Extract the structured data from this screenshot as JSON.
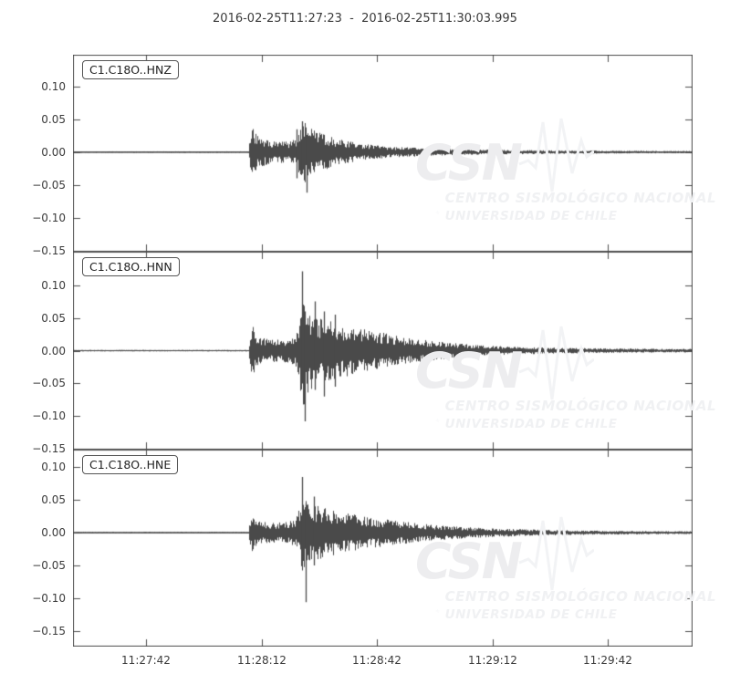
{
  "title": "2016-02-25T11:27:23  -  2016-02-25T11:30:03.995",
  "watermark": {
    "logo": "CSN",
    "line1": "CENTRO SISMOLÓGICO NACIONAL",
    "line2": "UNIVERSIDAD DE CHILE"
  },
  "colors": {
    "trace": "#4a4a4a",
    "frame": "#4d4d4d",
    "tick_label": "#3a3a3a",
    "watermark_logo": "#ededef",
    "watermark_text": "#f0f1f3",
    "background": "#ffffff"
  },
  "chart_data": {
    "type": "line",
    "kind": "seismogram-3-panel-waveform",
    "title": "2016-02-25T11:27:23  -  2016-02-25T11:30:03.995",
    "time_start": "2016-02-25T11:27:23",
    "time_end": "2016-02-25T11:30:03.995",
    "duration_s": 160.995,
    "grid": false,
    "legend": false,
    "xticks": [
      {
        "t": 19,
        "label": "11:27:42"
      },
      {
        "t": 49,
        "label": "11:28:12"
      },
      {
        "t": 79,
        "label": "11:28:42"
      },
      {
        "t": 109,
        "label": "11:29:12"
      },
      {
        "t": 139,
        "label": "11:29:42"
      }
    ],
    "yticks": [
      {
        "v": 0.1,
        "label": "0.10"
      },
      {
        "v": 0.05,
        "label": "0.05"
      },
      {
        "v": 0.0,
        "label": "0.00"
      },
      {
        "v": -0.05,
        "label": "−0.05"
      },
      {
        "v": -0.1,
        "label": "−0.10"
      },
      {
        "v": -0.15,
        "label": "−0.15"
      }
    ],
    "event_onset_s": 45.8,
    "s_burst_s": 59.6,
    "panels": [
      {
        "id": "C1.C18O..HNZ",
        "ylim": [
          -0.152,
          0.1486
        ],
        "peak": 0.047,
        "trough": -0.062,
        "seed": 1337,
        "envelope": [
          [
            0,
            0.0012
          ],
          [
            45.6,
            0.0012
          ],
          [
            46,
            0.032
          ],
          [
            46.6,
            0.04
          ],
          [
            48,
            0.024
          ],
          [
            50,
            0.02
          ],
          [
            53,
            0.017
          ],
          [
            56,
            0.016
          ],
          [
            58,
            0.02
          ],
          [
            59,
            0.042
          ],
          [
            60,
            0.05
          ],
          [
            61,
            0.042
          ],
          [
            63,
            0.032
          ],
          [
            66,
            0.026
          ],
          [
            69,
            0.02
          ],
          [
            73,
            0.015
          ],
          [
            78,
            0.011
          ],
          [
            84,
            0.008
          ],
          [
            92,
            0.006
          ],
          [
            100,
            0.0045
          ],
          [
            112,
            0.0035
          ],
          [
            130,
            0.0025
          ],
          [
            145,
            0.002
          ],
          [
            161,
            0.0018
          ]
        ],
        "spikes": [
          {
            "t": 58.2,
            "up": 0.035,
            "down": -0.04
          },
          {
            "t": 59.4,
            "up": 0.047,
            "down": -0.033
          },
          {
            "t": 60.6,
            "up": 0.026,
            "down": -0.062
          }
        ]
      },
      {
        "id": "C1.C18O..HNN",
        "ylim": [
          -0.151,
          0.151
        ],
        "peak": 0.121,
        "trough": -0.108,
        "seed": 1414,
        "envelope": [
          [
            0,
            0.0012
          ],
          [
            45.6,
            0.0012
          ],
          [
            46,
            0.03
          ],
          [
            46.6,
            0.038
          ],
          [
            48,
            0.022
          ],
          [
            50,
            0.018
          ],
          [
            53,
            0.017
          ],
          [
            56,
            0.02
          ],
          [
            58,
            0.026
          ],
          [
            59,
            0.06
          ],
          [
            59.8,
            0.088
          ],
          [
            61,
            0.07
          ],
          [
            62.5,
            0.055
          ],
          [
            64,
            0.05
          ],
          [
            66.5,
            0.046
          ],
          [
            69,
            0.042
          ],
          [
            72,
            0.038
          ],
          [
            75,
            0.034
          ],
          [
            78,
            0.03
          ],
          [
            81,
            0.027
          ],
          [
            85,
            0.022
          ],
          [
            89,
            0.018
          ],
          [
            93,
            0.015
          ],
          [
            98,
            0.012
          ],
          [
            104,
            0.009
          ],
          [
            110,
            0.007
          ],
          [
            118,
            0.0055
          ],
          [
            127,
            0.0045
          ],
          [
            138,
            0.0035
          ],
          [
            150,
            0.003
          ],
          [
            161,
            0.0028
          ]
        ],
        "spikes": [
          {
            "t": 59.6,
            "up": 0.121,
            "down": -0.05
          },
          {
            "t": 60.3,
            "up": 0.06,
            "down": -0.108
          },
          {
            "t": 62.8,
            "up": 0.075,
            "down": -0.06
          },
          {
            "t": 65.2,
            "up": 0.06,
            "down": -0.07
          },
          {
            "t": 68.0,
            "up": 0.055,
            "down": -0.055
          }
        ]
      },
      {
        "id": "C1.C18O..HNE",
        "ylim": [
          -0.1736,
          0.1266
        ],
        "peak": 0.085,
        "trough": -0.106,
        "seed": 1591,
        "envelope": [
          [
            0,
            0.0012
          ],
          [
            45.6,
            0.0012
          ],
          [
            46,
            0.027
          ],
          [
            46.6,
            0.034
          ],
          [
            48,
            0.02
          ],
          [
            50,
            0.016
          ],
          [
            53,
            0.015
          ],
          [
            56,
            0.018
          ],
          [
            58,
            0.024
          ],
          [
            59,
            0.05
          ],
          [
            59.8,
            0.062
          ],
          [
            61,
            0.05
          ],
          [
            62.5,
            0.043
          ],
          [
            64,
            0.04
          ],
          [
            66.5,
            0.037
          ],
          [
            69,
            0.033
          ],
          [
            72,
            0.029
          ],
          [
            75,
            0.026
          ],
          [
            78,
            0.023
          ],
          [
            81,
            0.021
          ],
          [
            85,
            0.018
          ],
          [
            89,
            0.015
          ],
          [
            93,
            0.012
          ],
          [
            98,
            0.01
          ],
          [
            104,
            0.008
          ],
          [
            110,
            0.0065
          ],
          [
            118,
            0.005
          ],
          [
            127,
            0.004
          ],
          [
            138,
            0.003
          ],
          [
            150,
            0.0025
          ],
          [
            161,
            0.0022
          ]
        ],
        "spikes": [
          {
            "t": 59.5,
            "up": 0.085,
            "down": -0.035
          },
          {
            "t": 60.4,
            "up": 0.045,
            "down": -0.106
          },
          {
            "t": 62.6,
            "up": 0.055,
            "down": -0.05
          }
        ]
      }
    ]
  }
}
